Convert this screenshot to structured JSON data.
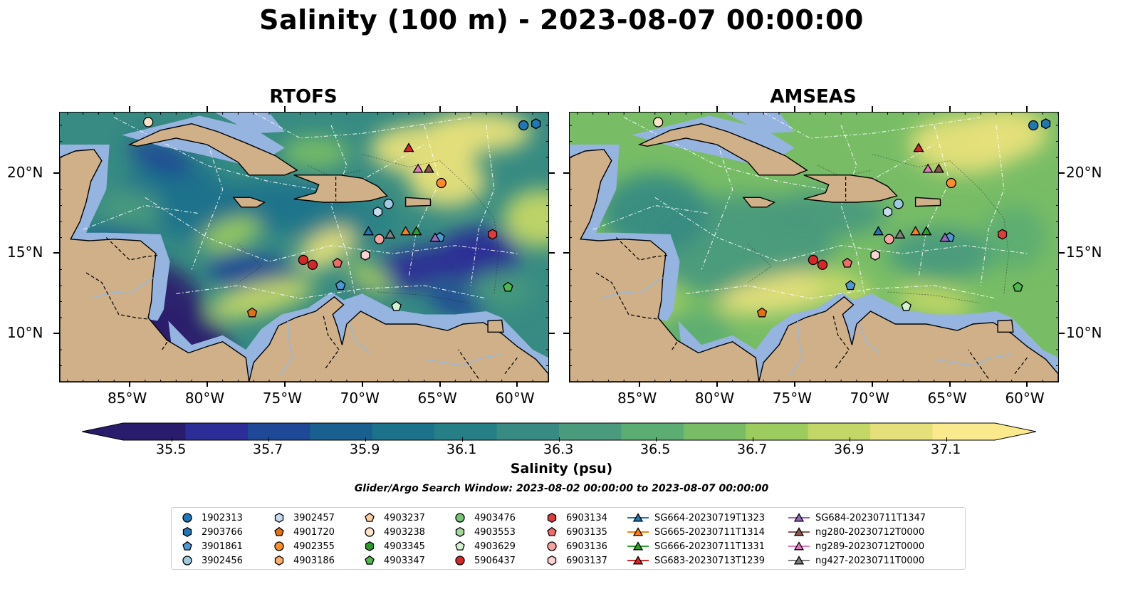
{
  "title": "Salinity (100 m) - 2023-08-07 00:00:00",
  "panels": [
    {
      "title": "RTOFS",
      "style": "rtofs"
    },
    {
      "title": "AMSEAS",
      "style": "amseas"
    }
  ],
  "lon_ticks": [
    "85°W",
    "80°W",
    "75°W",
    "70°W",
    "65°W",
    "60°W"
  ],
  "lat_ticks": [
    "20°N",
    "15°N",
    "10°N"
  ],
  "colors": {
    "land": "#cfb088",
    "shelf": "#95b4df",
    "ocean_mid": "#3f9c84"
  },
  "colorbar": {
    "colormap": "haline",
    "extend": "both",
    "ticks": [
      "35.5",
      "35.7",
      "35.9",
      "36.1",
      "36.3",
      "36.5",
      "36.7",
      "36.9",
      "37.1"
    ],
    "label": "Salinity (psu)",
    "colors": [
      "#2a1c6d",
      "#2c2d96",
      "#1f4896",
      "#18608f",
      "#1c728b",
      "#267f87",
      "#378b82",
      "#4a9a7d",
      "#5cad72",
      "#78bd66",
      "#9ccc5e",
      "#c3d766",
      "#e6e07a",
      "#fbe98e"
    ]
  },
  "search_window": "Glider/Argo Search Window: 2023-08-02 00:00:00 to 2023-08-07 00:00:00",
  "legend": [
    {
      "label": "1902313",
      "marker": "circle",
      "color": "#1f77b4"
    },
    {
      "label": "2903766",
      "marker": "hexagon",
      "color": "#1f77b4"
    },
    {
      "label": "3901861",
      "marker": "pentagon",
      "color": "#4b9ad4"
    },
    {
      "label": "3902456",
      "marker": "circle",
      "color": "#9ecae1"
    },
    {
      "label": "3902457",
      "marker": "hexagon",
      "color": "#c6dbef"
    },
    {
      "label": "4901720",
      "marker": "pentagon",
      "color": "#e6700e"
    },
    {
      "label": "4902355",
      "marker": "circle",
      "color": "#ff8c2a"
    },
    {
      "label": "4903186",
      "marker": "hexagon",
      "color": "#fdae6b"
    },
    {
      "label": "4903237",
      "marker": "pentagon",
      "color": "#fdd0a2"
    },
    {
      "label": "4903238",
      "marker": "circle",
      "color": "#fde4c8"
    },
    {
      "label": "4903345",
      "marker": "hexagon",
      "color": "#2a9d2a"
    },
    {
      "label": "4903347",
      "marker": "pentagon",
      "color": "#4fb84f"
    },
    {
      "label": "4903476",
      "marker": "circle",
      "color": "#74c476"
    },
    {
      "label": "4903553",
      "marker": "hexagon",
      "color": "#a1d99b"
    },
    {
      "label": "4903629",
      "marker": "pentagon",
      "color": "#d2f2cf"
    },
    {
      "label": "5906437",
      "marker": "circle",
      "color": "#d62728"
    },
    {
      "label": "6903134",
      "marker": "hexagon",
      "color": "#de3b3b"
    },
    {
      "label": "6903135",
      "marker": "pentagon",
      "color": "#f06b6b"
    },
    {
      "label": "6903136",
      "marker": "circle",
      "color": "#f7a3a0"
    },
    {
      "label": "6903137",
      "marker": "hexagon",
      "color": "#fdd3d2"
    },
    {
      "label": "SG664-20230719T1323",
      "marker": "triangle-line",
      "color": "#1f77b4"
    },
    {
      "label": "SG665-20230711T1314",
      "marker": "triangle-line",
      "color": "#ff7f0e"
    },
    {
      "label": "SG666-20230711T1331",
      "marker": "triangle-line",
      "color": "#2ca02c"
    },
    {
      "label": "SG683-20230713T1239",
      "marker": "triangle-line",
      "color": "#d62728"
    },
    {
      "label": "SG684-20230711T1347",
      "marker": "triangle-line",
      "color": "#9467bd"
    },
    {
      "label": "ng280-20230712T0000",
      "marker": "triangle-line",
      "color": "#8c564b"
    },
    {
      "label": "ng289-20230712T0000",
      "marker": "triangle-line",
      "color": "#e377c2"
    },
    {
      "label": "ng427-20230711T0000",
      "marker": "triangle-line",
      "color": "#7f7f7f"
    }
  ],
  "observations": [
    {
      "id": "1902313",
      "lon": -59.6,
      "lat": 23.0
    },
    {
      "id": "2903766",
      "lon": -58.8,
      "lat": 23.1
    },
    {
      "id": "4903238",
      "lon": -83.8,
      "lat": 23.2
    },
    {
      "id": "SG683-20230713T1239",
      "lon": -67.0,
      "lat": 21.6
    },
    {
      "id": "ng289-20230712T0000",
      "lon": -66.4,
      "lat": 20.3
    },
    {
      "id": "ng280-20230712T0000",
      "lon": -65.7,
      "lat": 20.3
    },
    {
      "id": "4902355",
      "lon": -64.9,
      "lat": 19.4
    },
    {
      "id": "3902456",
      "lon": -68.3,
      "lat": 18.1
    },
    {
      "id": "3902457",
      "lon": -69.0,
      "lat": 17.6
    },
    {
      "id": "SG664-20230719T1323",
      "lon": -69.6,
      "lat": 16.4
    },
    {
      "id": "ng427-20230711T0000",
      "lon": -68.2,
      "lat": 16.2
    },
    {
      "id": "SG665-20230711T1314",
      "lon": -67.2,
      "lat": 16.4
    },
    {
      "id": "SG666-20230711T1331",
      "lon": -66.5,
      "lat": 16.4
    },
    {
      "id": "6903136",
      "lon": -68.9,
      "lat": 15.9
    },
    {
      "id": "3901861",
      "lon": -65.0,
      "lat": 16.0
    },
    {
      "id": "SG684-20230711T1347",
      "lon": -65.3,
      "lat": 16.0
    },
    {
      "id": "6903137",
      "lon": -69.8,
      "lat": 14.9
    },
    {
      "id": "6903134",
      "lon": -61.6,
      "lat": 16.2
    },
    {
      "id": "5906437",
      "lon": -73.8,
      "lat": 14.6
    },
    {
      "id": "5906437",
      "lon": -73.2,
      "lat": 14.3
    },
    {
      "id": "6903135",
      "lon": -71.6,
      "lat": 14.4
    },
    {
      "id": "3901861",
      "lon": -71.4,
      "lat": 13.0
    },
    {
      "id": "4903347",
      "lon": -60.6,
      "lat": 12.9
    },
    {
      "id": "4903629",
      "lon": -67.8,
      "lat": 11.7
    },
    {
      "id": "4901720",
      "lon": -77.1,
      "lat": 11.3
    }
  ]
}
